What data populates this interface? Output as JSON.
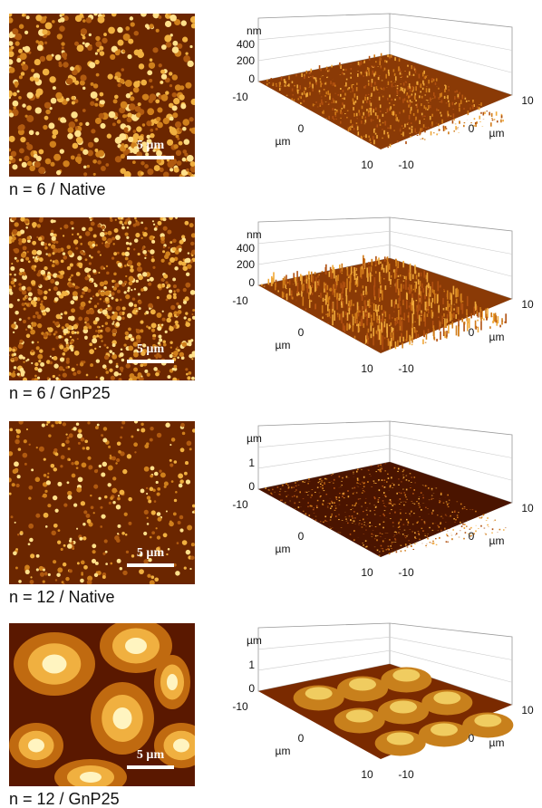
{
  "panels": [
    {
      "caption": "n = 6 / Native",
      "scale_bar": "5 µm",
      "plot": {
        "z_axis": {
          "unit": "nm",
          "ticks": [
            "400",
            "200",
            "0"
          ]
        },
        "left_axis": {
          "unit": "µm",
          "ticks": [
            "-10",
            "0",
            "10"
          ]
        },
        "right_axis": {
          "unit": "µm",
          "ticks": [
            "-10",
            "0",
            "10"
          ]
        }
      }
    },
    {
      "caption": "n = 6 / GnP25",
      "scale_bar": "5 µm",
      "plot": {
        "z_axis": {
          "unit": "nm",
          "ticks": [
            "400",
            "200",
            "0"
          ]
        },
        "left_axis": {
          "unit": "µm",
          "ticks": [
            "-10",
            "0",
            "10"
          ]
        },
        "right_axis": {
          "unit": "µm",
          "ticks": [
            "-10",
            "0",
            "10"
          ]
        }
      }
    },
    {
      "caption": "n = 12 / Native",
      "scale_bar": "5 µm",
      "plot": {
        "z_axis": {
          "unit": "µm",
          "ticks": [
            "1",
            "0"
          ]
        },
        "left_axis": {
          "unit": "µm",
          "ticks": [
            "-10",
            "0",
            "10"
          ]
        },
        "right_axis": {
          "unit": "µm",
          "ticks": [
            "-10",
            "0",
            "10"
          ]
        }
      }
    },
    {
      "caption": "n = 12 / GnP25",
      "scale_bar": "5 µm",
      "plot": {
        "z_axis": {
          "unit": "µm",
          "ticks": [
            "1",
            "0"
          ]
        },
        "left_axis": {
          "unit": "µm",
          "ticks": [
            "-10",
            "0",
            "10"
          ]
        },
        "right_axis": {
          "unit": "µm",
          "ticks": [
            "-10",
            "0",
            "10"
          ]
        }
      }
    }
  ]
}
